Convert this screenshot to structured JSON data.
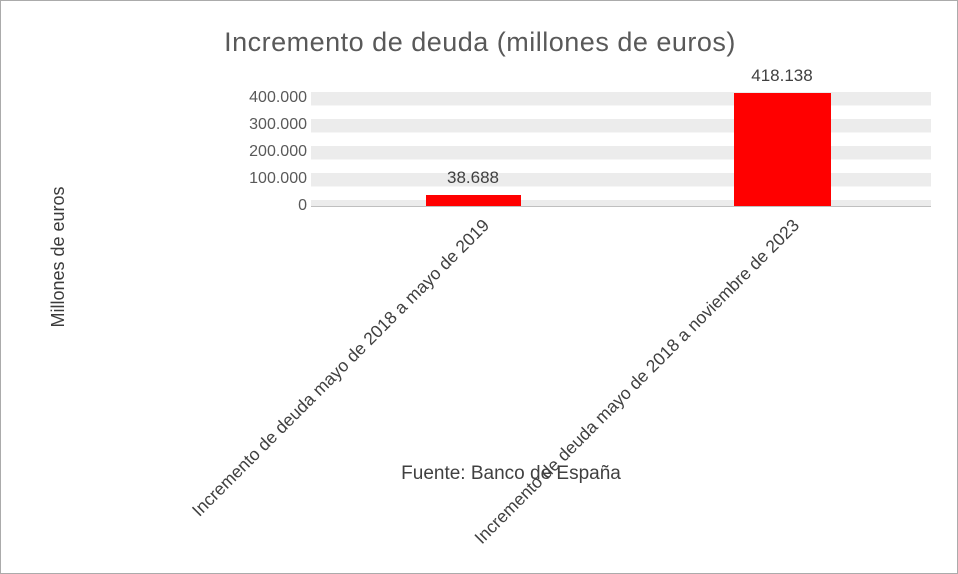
{
  "chart_data": {
    "type": "bar",
    "title": "Incremento de deuda (millones de euros)",
    "ylabel": "Millones de euros",
    "source": "Fuente: Banco de España",
    "categories": [
      "Incremento de deuda mayo de 2018 a mayo de 2019",
      "Incremento de deuda mayo de 2018 a noviembre de 2023"
    ],
    "values": [
      38688,
      418138
    ],
    "value_labels": [
      "38.688",
      "418.138"
    ],
    "yticks": [
      "400.000",
      "300.000",
      "200.000",
      "100.000",
      "0"
    ],
    "ylim": [
      0,
      400000
    ],
    "bar_color": "#FF0000",
    "grid": true,
    "legend": false,
    "legend_position": "none"
  }
}
